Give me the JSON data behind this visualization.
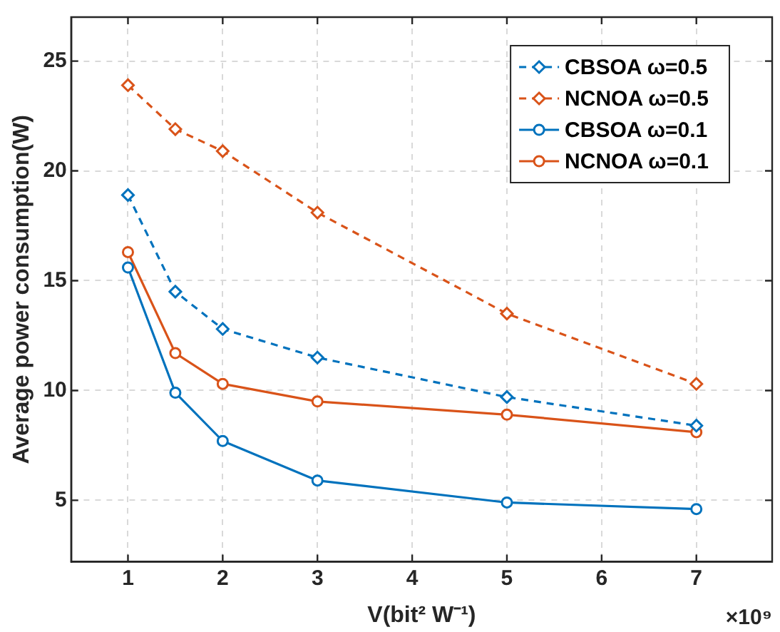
{
  "chart_data": {
    "type": "line",
    "xlabel": "V(bit² W⁻¹)",
    "ylabel": "Average power consumption(W)",
    "x": [
      1,
      1.5,
      2,
      3,
      5,
      7
    ],
    "xlim": [
      0.4,
      7.8
    ],
    "xticks": [
      1,
      2,
      3,
      4,
      5,
      6,
      7
    ],
    "ylim": [
      2.2,
      27
    ],
    "yticks": [
      5,
      10,
      15,
      20,
      25
    ],
    "grid": true,
    "legend": "top right",
    "annotations": [
      "×10⁹"
    ],
    "series": [
      {
        "name": "CBSOA ω=0.5",
        "color": "#0072bd",
        "marker": "diamond",
        "line_style": "dashed",
        "values": [
          18.9,
          14.5,
          12.8,
          11.5,
          9.7,
          8.4
        ]
      },
      {
        "name": "NCNOA ω=0.5",
        "color": "#d95319",
        "marker": "diamond",
        "line_style": "dashed",
        "values": [
          23.9,
          21.9,
          20.9,
          18.1,
          13.5,
          10.3
        ]
      },
      {
        "name": "CBSOA ω=0.1",
        "color": "#0072bd",
        "marker": "circle",
        "line_style": "solid",
        "values": [
          15.6,
          9.9,
          7.7,
          5.9,
          4.9,
          4.6
        ]
      },
      {
        "name": "NCNOA ω=0.1",
        "color": "#d95319",
        "marker": "circle",
        "line_style": "solid",
        "values": [
          16.3,
          11.7,
          10.3,
          9.5,
          8.9,
          8.1
        ]
      }
    ]
  }
}
